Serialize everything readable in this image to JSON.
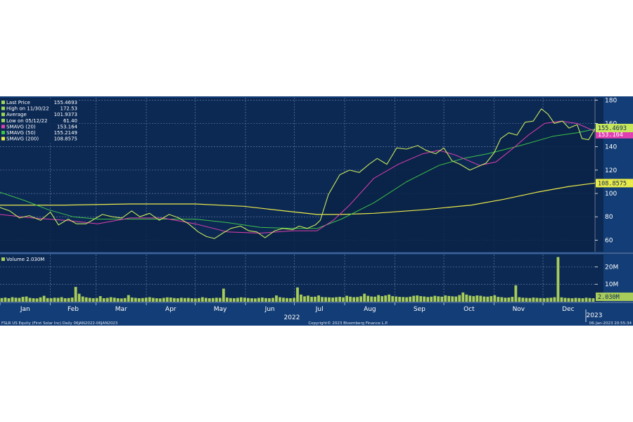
{
  "chart_data": {
    "type": "line",
    "footer": {
      "left": "FSLR US Equity (First Solar Inc)  Daily 06JAN2022-06JAN2023",
      "center": "Copyright© 2023 Bloomberg Finance L.P.",
      "right": "06-Jan-2023 20:55:34"
    },
    "legend": [
      {
        "label": "Last Price",
        "value": "155.4693",
        "color": "#9ad65c"
      },
      {
        "label": "High on 11/30/22",
        "value": "172.53",
        "color": "#9ad65c"
      },
      {
        "label": "Average",
        "value": "101.9373",
        "color": "#9ad65c"
      },
      {
        "label": "Low on 05/12/22",
        "value": "61.40",
        "color": "#9ad65c"
      },
      {
        "label": "SMAVG (20)",
        "value": "153.164",
        "color": "#e040b0"
      },
      {
        "label": "SMAVG (50)",
        "value": "155.2149",
        "color": "#3cc24a"
      },
      {
        "label": "SMAVG (200)",
        "value": "108.8575",
        "color": "#eaea4a"
      }
    ],
    "volume_legend": {
      "label": "Volume",
      "value": "2.030M"
    },
    "price_axis": {
      "ticks": [
        180,
        160,
        140,
        120,
        100,
        80,
        60
      ],
      "range": [
        50,
        182
      ]
    },
    "volume_axis": {
      "ticks": [
        "20M",
        "10M"
      ],
      "tick_values": [
        20,
        10
      ],
      "range": [
        0,
        27
      ]
    },
    "x_axis": {
      "months": [
        "Jan",
        "Feb",
        "Mar",
        "Apr",
        "May",
        "Jun",
        "Jul",
        "Aug",
        "Sep",
        "Oct",
        "Nov",
        "Dec"
      ],
      "year_label": "2022",
      "next_year_label": "2023"
    },
    "right_tags": {
      "last_price": "155.4693",
      "smavg20": "153.164",
      "smavg200": "108.8575",
      "volume": "2.030M"
    },
    "colors": {
      "background": "#133d76",
      "panel": "#0c2954",
      "price_line": "#c8e85c",
      "smavg20": "#e040b0",
      "smavg50": "#3cc24a",
      "smavg200": "#eaea4a",
      "volume_bar": "#a8cc5a"
    },
    "x_unit": "day of year (2022)",
    "series": [
      {
        "name": "Last Price",
        "points": [
          [
            0,
            88
          ],
          [
            6,
            85
          ],
          [
            12,
            79
          ],
          [
            18,
            81
          ],
          [
            25,
            77
          ],
          [
            31,
            84
          ],
          [
            36,
            73
          ],
          [
            42,
            78
          ],
          [
            47,
            74
          ],
          [
            53,
            74
          ],
          [
            58,
            78
          ],
          [
            63,
            82
          ],
          [
            69,
            80
          ],
          [
            75,
            79
          ],
          [
            81,
            85
          ],
          [
            86,
            80
          ],
          [
            92,
            83
          ],
          [
            98,
            77
          ],
          [
            104,
            82
          ],
          [
            110,
            79
          ],
          [
            116,
            74
          ],
          [
            122,
            67
          ],
          [
            127,
            63
          ],
          [
            132,
            61.4
          ],
          [
            137,
            66
          ],
          [
            142,
            70
          ],
          [
            148,
            72
          ],
          [
            153,
            68
          ],
          [
            158,
            67
          ],
          [
            163,
            62
          ],
          [
            169,
            68
          ],
          [
            174,
            70
          ],
          [
            180,
            69
          ],
          [
            184,
            72
          ],
          [
            189,
            70
          ],
          [
            194,
            73
          ],
          [
            197,
            77
          ],
          [
            202,
            99
          ],
          [
            209,
            116
          ],
          [
            215,
            120
          ],
          [
            221,
            118
          ],
          [
            227,
            125
          ],
          [
            232,
            130
          ],
          [
            238,
            125
          ],
          [
            244,
            139
          ],
          [
            250,
            138
          ],
          [
            257,
            141
          ],
          [
            262,
            137
          ],
          [
            268,
            134
          ],
          [
            273,
            139
          ],
          [
            278,
            128
          ],
          [
            283,
            125
          ],
          [
            289,
            120
          ],
          [
            294,
            123
          ],
          [
            299,
            126
          ],
          [
            304,
            135
          ],
          [
            308,
            147
          ],
          [
            313,
            152
          ],
          [
            318,
            150
          ],
          [
            323,
            161
          ],
          [
            328,
            162
          ],
          [
            333,
            172.5
          ],
          [
            337,
            168
          ],
          [
            341,
            160
          ],
          [
            346,
            162
          ],
          [
            350,
            156
          ],
          [
            355,
            159
          ],
          [
            358,
            147
          ],
          [
            362,
            146
          ],
          [
            366,
            155.5
          ]
        ]
      },
      {
        "name": "SMAVG (20)",
        "points": [
          [
            0,
            82
          ],
          [
            20,
            79
          ],
          [
            40,
            77
          ],
          [
            60,
            74
          ],
          [
            80,
            79
          ],
          [
            100,
            79
          ],
          [
            120,
            74
          ],
          [
            140,
            67
          ],
          [
            160,
            66
          ],
          [
            180,
            68
          ],
          [
            195,
            68
          ],
          [
            205,
            77
          ],
          [
            215,
            90
          ],
          [
            230,
            113
          ],
          [
            245,
            125
          ],
          [
            260,
            134
          ],
          [
            270,
            137
          ],
          [
            280,
            133
          ],
          [
            295,
            124
          ],
          [
            305,
            127
          ],
          [
            315,
            138
          ],
          [
            325,
            150
          ],
          [
            335,
            160
          ],
          [
            345,
            162
          ],
          [
            355,
            160
          ],
          [
            366,
            153.2
          ]
        ]
      },
      {
        "name": "SMAVG (50)",
        "points": [
          [
            0,
            101
          ],
          [
            15,
            94
          ],
          [
            30,
            86
          ],
          [
            45,
            80
          ],
          [
            60,
            78
          ],
          [
            80,
            78
          ],
          [
            100,
            78
          ],
          [
            120,
            78
          ],
          [
            140,
            75
          ],
          [
            160,
            71
          ],
          [
            180,
            70
          ],
          [
            195,
            70
          ],
          [
            210,
            78
          ],
          [
            230,
            92
          ],
          [
            250,
            110
          ],
          [
            270,
            124
          ],
          [
            285,
            130
          ],
          [
            300,
            134
          ],
          [
            320,
            141
          ],
          [
            340,
            149
          ],
          [
            355,
            152
          ],
          [
            366,
            155.2
          ]
        ]
      },
      {
        "name": "SMAVG (200)",
        "points": [
          [
            0,
            90
          ],
          [
            40,
            90
          ],
          [
            80,
            91
          ],
          [
            120,
            91
          ],
          [
            150,
            89
          ],
          [
            175,
            85
          ],
          [
            195,
            82
          ],
          [
            210,
            82
          ],
          [
            230,
            83
          ],
          [
            260,
            86
          ],
          [
            290,
            90
          ],
          [
            310,
            95
          ],
          [
            330,
            101
          ],
          [
            350,
            106
          ],
          [
            366,
            108.9
          ]
        ]
      },
      {
        "name": "Volume",
        "unit": "M",
        "values": [
          2.1,
          2.4,
          2.0,
          2.6,
          2.3,
          2.2,
          2.8,
          3.0,
          2.2,
          2.0,
          1.9,
          2.5,
          3.4,
          2.1,
          2.0,
          2.3,
          2.2,
          2.6,
          2.0,
          2.1,
          2.4,
          8.5,
          4.6,
          3.0,
          2.5,
          2.2,
          2.0,
          2.1,
          3.2,
          2.0,
          2.2,
          2.6,
          2.3,
          2.0,
          1.9,
          2.1,
          3.8,
          2.4,
          2.2,
          2.0,
          2.1,
          2.3,
          2.6,
          2.2,
          2.0,
          1.9,
          2.2,
          2.5,
          2.4,
          2.1,
          2.0,
          2.3,
          2.1,
          2.2,
          2.0,
          1.9,
          2.1,
          2.6,
          2.2,
          2.0,
          2.1,
          2.3,
          2.2,
          7.5,
          2.4,
          2.1,
          2.0,
          2.2,
          2.5,
          2.3,
          2.1,
          2.0,
          1.9,
          2.2,
          2.4,
          2.1,
          2.0,
          2.2,
          3.6,
          2.6,
          2.3,
          2.1,
          2.0,
          2.2,
          8.2,
          4.1,
          3.1,
          3.5,
          2.8,
          2.9,
          3.6,
          2.7,
          2.6,
          2.5,
          2.4,
          2.6,
          2.8,
          2.5,
          3.4,
          2.9,
          2.6,
          2.7,
          3.1,
          4.6,
          3.4,
          3.0,
          2.9,
          3.8,
          3.2,
          3.6,
          4.1,
          3.2,
          3.0,
          2.8,
          2.7,
          2.6,
          2.9,
          3.4,
          3.6,
          3.2,
          3.0,
          2.7,
          2.9,
          3.4,
          3.1,
          2.9,
          3.6,
          3.3,
          3.1,
          3.0,
          3.8,
          5.3,
          4.1,
          3.5,
          3.2,
          3.6,
          3.4,
          3.0,
          2.9,
          3.2,
          3.7,
          2.8,
          2.6,
          2.3,
          2.4,
          2.8,
          9.4,
          2.6,
          2.3,
          2.2,
          2.1,
          2.4,
          2.2,
          2.1,
          2.0,
          2.2,
          2.3,
          2.6,
          25.6,
          2.5,
          2.2,
          2.1,
          2.0,
          2.2,
          2.1,
          2.0,
          2.3,
          2.1,
          2.0
        ]
      }
    ]
  }
}
